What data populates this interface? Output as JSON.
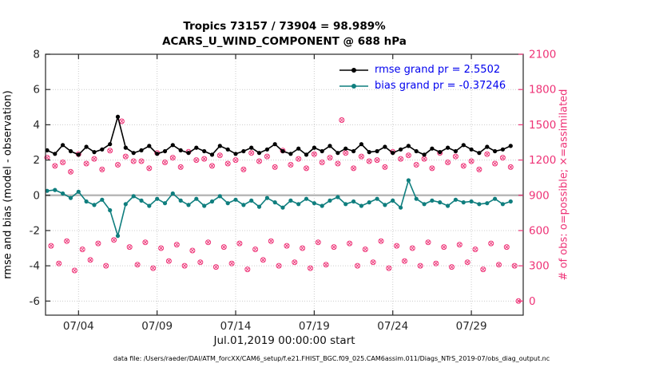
{
  "figure": {
    "caption": "data file: /Users/raeder/DAI/ATM_forcXX/CAM6_setup/f.e21.FHIST_BGC.f09_025.CAM6assim.011/Diags_NTrS_2019-07/obs_diag_output.nc"
  },
  "chart_data": {
    "type": "line",
    "title": "Tropics 73157 / 73904 = 98.989%",
    "subtitle": "ACARS_U_WIND_COMPONENT @ 688 hPa",
    "xlabel": "Jul.01,2019 00:00:00 start",
    "ylabel_left": "rmse and bias (model - observation)",
    "ylabel_right": "# of obs: o=possible; ×=assimilated",
    "grid": true,
    "legend_position": "top-right-inside",
    "colors": {
      "rmse": "#000000",
      "bias": "#0f7e7e",
      "obs": "#ee3377",
      "legend_text": "#0000ee",
      "zero_line": "#b8b8b8",
      "grid": "#cccccc",
      "axis": "#262626"
    },
    "x_domain": [
      1.9,
      32.3
    ],
    "x_ticks": [
      {
        "t": 4,
        "label": "07/04"
      },
      {
        "t": 9,
        "label": "07/09"
      },
      {
        "t": 14,
        "label": "07/14"
      },
      {
        "t": 19,
        "label": "07/19"
      },
      {
        "t": 24,
        "label": "07/24"
      },
      {
        "t": 29,
        "label": "07/29"
      }
    ],
    "y_left": {
      "domain": [
        -6.8,
        8
      ],
      "ticks": [
        8,
        6,
        4,
        2,
        0,
        -2,
        -4,
        -6
      ]
    },
    "y_right": {
      "domain": [
        -120,
        2100
      ],
      "ticks": [
        0,
        300,
        600,
        900,
        1200,
        1500,
        1800,
        2100
      ]
    },
    "series": [
      {
        "name": "rmse",
        "label": "rmse grand pr = 2.5502",
        "grand_value": 2.5502,
        "color_key": "rmse",
        "axis": "left",
        "t_start": 2.0,
        "t_step": 0.5,
        "values": [
          2.55,
          2.35,
          2.85,
          2.5,
          2.3,
          2.75,
          2.45,
          2.6,
          2.9,
          4.45,
          2.7,
          2.4,
          2.55,
          2.8,
          2.35,
          2.5,
          2.85,
          2.55,
          2.4,
          2.7,
          2.5,
          2.3,
          2.8,
          2.6,
          2.35,
          2.5,
          2.7,
          2.4,
          2.6,
          2.9,
          2.5,
          2.35,
          2.65,
          2.3,
          2.7,
          2.5,
          2.8,
          2.4,
          2.65,
          2.5,
          2.9,
          2.45,
          2.5,
          2.75,
          2.4,
          2.6,
          2.8,
          2.5,
          2.3,
          2.65,
          2.45,
          2.7,
          2.5,
          2.85,
          2.6,
          2.4,
          2.75,
          2.5,
          2.6,
          2.8
        ]
      },
      {
        "name": "bias",
        "label": "bias grand pr = -0.37246",
        "grand_value": -0.37246,
        "color_key": "bias",
        "axis": "left",
        "t_start": 2.0,
        "t_step": 0.5,
        "values": [
          0.25,
          0.3,
          0.1,
          -0.15,
          0.2,
          -0.35,
          -0.55,
          -0.25,
          -0.85,
          -2.3,
          -0.5,
          -0.05,
          -0.3,
          -0.6,
          -0.2,
          -0.45,
          0.1,
          -0.3,
          -0.55,
          -0.2,
          -0.6,
          -0.35,
          -0.05,
          -0.45,
          -0.25,
          -0.55,
          -0.3,
          -0.65,
          -0.15,
          -0.4,
          -0.7,
          -0.3,
          -0.5,
          -0.2,
          -0.45,
          -0.6,
          -0.3,
          -0.1,
          -0.5,
          -0.35,
          -0.6,
          -0.4,
          -0.2,
          -0.55,
          -0.3,
          -0.7,
          0.85,
          -0.2,
          -0.5,
          -0.3,
          -0.4,
          -0.6,
          -0.25,
          -0.4,
          -0.35,
          -0.5,
          -0.45,
          -0.2,
          -0.5,
          -0.35
        ]
      },
      {
        "name": "obs_counts",
        "label": "# of obs (o=possible, ×=assimilated)",
        "color_key": "obs",
        "axis": "right",
        "t_start": 2.0,
        "t_step": 0.25,
        "values": [
          1220,
          470,
          1150,
          320,
          1180,
          510,
          1100,
          260,
          1250,
          440,
          1170,
          350,
          1210,
          490,
          1120,
          300,
          1280,
          520,
          1160,
          1530,
          1230,
          460,
          1190,
          310,
          1190,
          500,
          1130,
          280,
          1260,
          450,
          1180,
          340,
          1220,
          480,
          1140,
          300,
          1270,
          430,
          1200,
          330,
          1210,
          500,
          1150,
          290,
          1240,
          460,
          1170,
          320,
          1200,
          490,
          1120,
          270,
          1260,
          440,
          1190,
          350,
          1230,
          510,
          1140,
          300,
          1280,
          470,
          1160,
          330,
          1210,
          450,
          1130,
          280,
          1250,
          500,
          1180,
          310,
          1220,
          460,
          1170,
          1540,
          1260,
          490,
          1130,
          300,
          1230,
          440,
          1190,
          330,
          1200,
          510,
          1140,
          280,
          1270,
          470,
          1210,
          340,
          1240,
          450,
          1160,
          300,
          1210,
          500,
          1130,
          320,
          1260,
          460,
          1180,
          290,
          1230,
          480,
          1150,
          330,
          1190,
          440,
          1120,
          270,
          1250,
          490,
          1170,
          310,
          1220,
          460,
          1140,
          300
        ],
        "extra": [
          {
            "t": 32.0,
            "v": 0
          }
        ]
      }
    ]
  }
}
